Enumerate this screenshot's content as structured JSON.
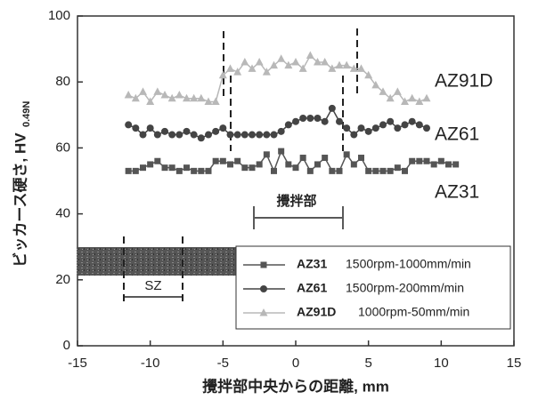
{
  "chart_data": {
    "type": "line",
    "xlabel": "攪拌部中央からの距離, mm",
    "ylabel": "ビッカース硬さ, HV",
    "ylabel_sub": "0.49N",
    "stir_zone_label": "攪拌部",
    "inset_label": "SZ",
    "xlim": [
      -15,
      15
    ],
    "xticks": [
      -15,
      -10,
      -5,
      0,
      5,
      10,
      15
    ],
    "ylim": [
      0,
      100
    ],
    "yticks": [
      0,
      20,
      40,
      60,
      80,
      100
    ],
    "series": [
      {
        "name": "AZ31",
        "condition": "1500rpm-1000mm/min",
        "color": "#555555",
        "marker": "square",
        "x": [
          -11.5,
          -11,
          -10.5,
          -10,
          -9.5,
          -9,
          -8.5,
          -8,
          -7.5,
          -7,
          -6.5,
          -6,
          -5.5,
          -5,
          -4.5,
          -4,
          -3.5,
          -3,
          -2.5,
          -2,
          -1.5,
          -1,
          -0.5,
          0,
          0.5,
          1,
          1.5,
          2,
          2.5,
          3,
          3.5,
          4,
          4.5,
          5,
          5.5,
          6,
          6.5,
          7,
          7.5,
          8,
          8.5,
          9,
          9.5,
          10,
          10.5,
          11
        ],
        "values": [
          53,
          53,
          54,
          55,
          56,
          54,
          54,
          53,
          54,
          53,
          53,
          53,
          56,
          56,
          55,
          56,
          54,
          54,
          55,
          58,
          53,
          59,
          55,
          54,
          57,
          53,
          55,
          57,
          53,
          53,
          58,
          55,
          57,
          53,
          53,
          53,
          53,
          54,
          53,
          56,
          56,
          56,
          55,
          56,
          55,
          55
        ]
      },
      {
        "name": "AZ61",
        "condition": "1500rpm-200mm/min",
        "color": "#444444",
        "marker": "circle",
        "x": [
          -11.5,
          -11,
          -10.5,
          -10,
          -9.5,
          -9,
          -8.5,
          -8,
          -7.5,
          -7,
          -6.5,
          -6,
          -5.5,
          -5,
          -4.5,
          -4,
          -3.5,
          -3,
          -2.5,
          -2,
          -1.5,
          -1,
          -0.5,
          0,
          0.5,
          1,
          1.5,
          2,
          2.5,
          3,
          3.5,
          4,
          4.5,
          5,
          5.5,
          6,
          6.5,
          7,
          7.5,
          8,
          8.5,
          9
        ],
        "values": [
          67,
          66,
          64,
          66,
          64,
          65,
          64,
          64,
          65,
          64,
          63,
          64,
          65,
          66,
          64,
          64,
          64,
          64,
          64,
          64,
          64,
          65,
          67,
          68,
          69,
          69,
          69,
          68,
          72,
          68,
          66,
          64,
          66,
          65,
          66,
          67,
          68,
          66,
          67,
          68,
          67,
          66
        ]
      },
      {
        "name": "AZ91D",
        "condition": "1000rpm-50mm/min",
        "color": "#b8b8b8",
        "marker": "triangle",
        "x": [
          -11.5,
          -11,
          -10.5,
          -10,
          -9.5,
          -9,
          -8.5,
          -8,
          -7.5,
          -7,
          -6.5,
          -6,
          -5.5,
          -5,
          -4.5,
          -4,
          -3.5,
          -3,
          -2.5,
          -2,
          -1.5,
          -1,
          -0.5,
          0,
          0.5,
          1,
          1.5,
          2,
          2.5,
          3,
          3.5,
          4,
          4.5,
          5,
          5.5,
          6,
          6.5,
          7,
          7.5,
          8,
          8.5,
          9
        ],
        "values": [
          76,
          75,
          77,
          74,
          77,
          76,
          75,
          76,
          75,
          75,
          75,
          74,
          74,
          82,
          84,
          83,
          86,
          84,
          86,
          83,
          85,
          87,
          85,
          86,
          84,
          88,
          86,
          86,
          84,
          85,
          85,
          84,
          84,
          82,
          79,
          77,
          75,
          77,
          74,
          75,
          74,
          75
        ]
      }
    ]
  }
}
